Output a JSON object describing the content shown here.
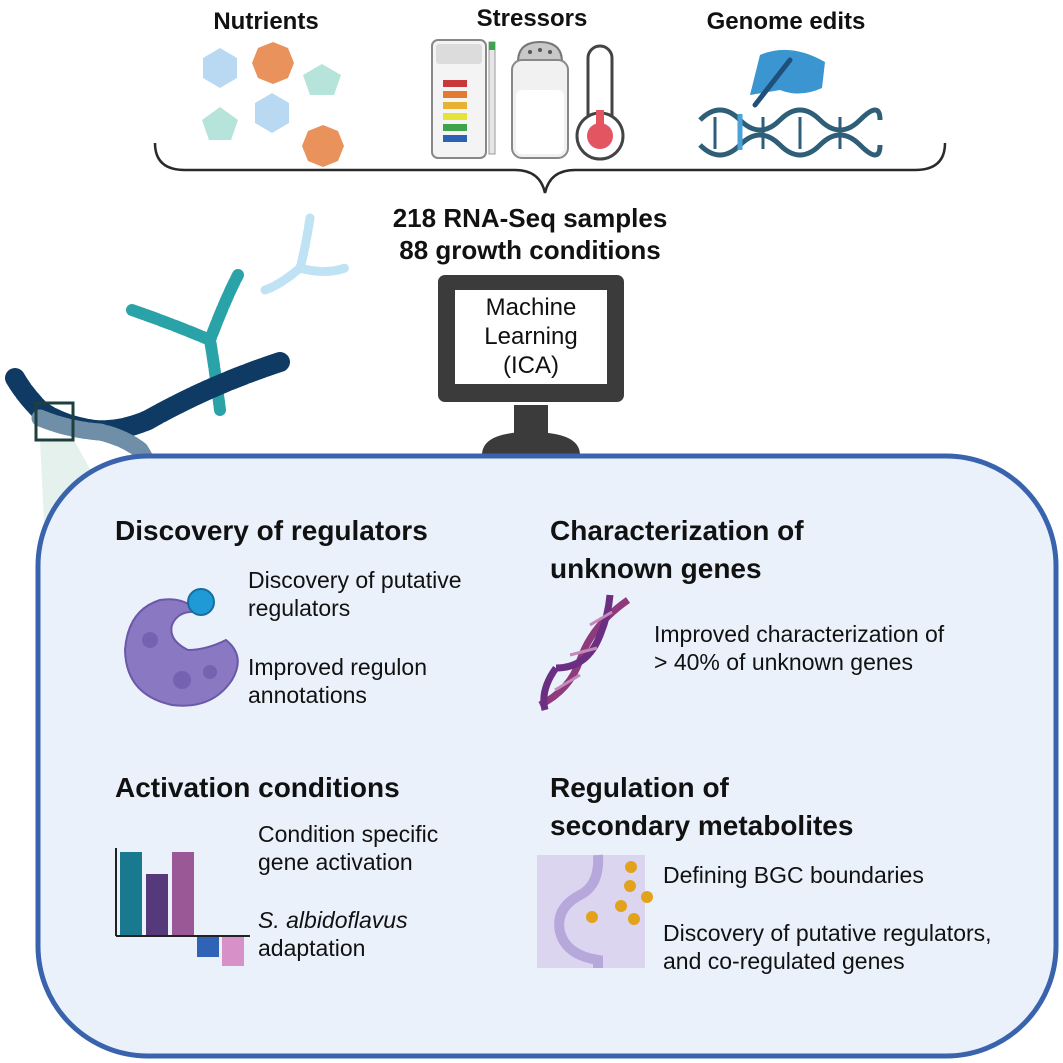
{
  "inputs": {
    "nutrients": "Nutrients",
    "stressors": "Stressors",
    "genome_edits": "Genome edits"
  },
  "summary": {
    "line1": "218 RNA-Seq samples",
    "line2": "88 growth conditions"
  },
  "computer": {
    "line1": "Machine",
    "line2": "Learning",
    "line3": "(ICA)"
  },
  "sections": {
    "regulators": {
      "title": "Discovery of regulators",
      "item1_line1": "Discovery of putative",
      "item1_line2": "regulators",
      "item2_line1": "Improved regulon",
      "item2_line2": "annotations"
    },
    "unknown_genes": {
      "title_line1": "Characterization of",
      "title_line2": "unknown genes",
      "item1_line1": "Improved characterization of",
      "item1_line2": "> 40% of unknown genes"
    },
    "activation": {
      "title": "Activation conditions",
      "item1_line1": "Condition specific",
      "item1_line2": "gene activation",
      "item2_species": "S. albidoflavus",
      "item2_line2": "adaptation"
    },
    "metabolites": {
      "title_line1": "Regulation of",
      "title_line2": "secondary metabolites",
      "item1": "Defining BGC boundaries",
      "item2_line1": "Discovery of putative regulators,",
      "item2_line2": "and co-regulated genes"
    }
  },
  "colors": {
    "panel_border": "#3a63ad",
    "panel_fill": "#eaf1fb",
    "nutrient_blue": "#b9d9f2",
    "nutrient_orange": "#e9925b",
    "nutrient_teal": "#b6e3da",
    "monitor": "#3a3a3a",
    "protein": "#8a78c2",
    "dna_purple": "#8e3a7c"
  }
}
